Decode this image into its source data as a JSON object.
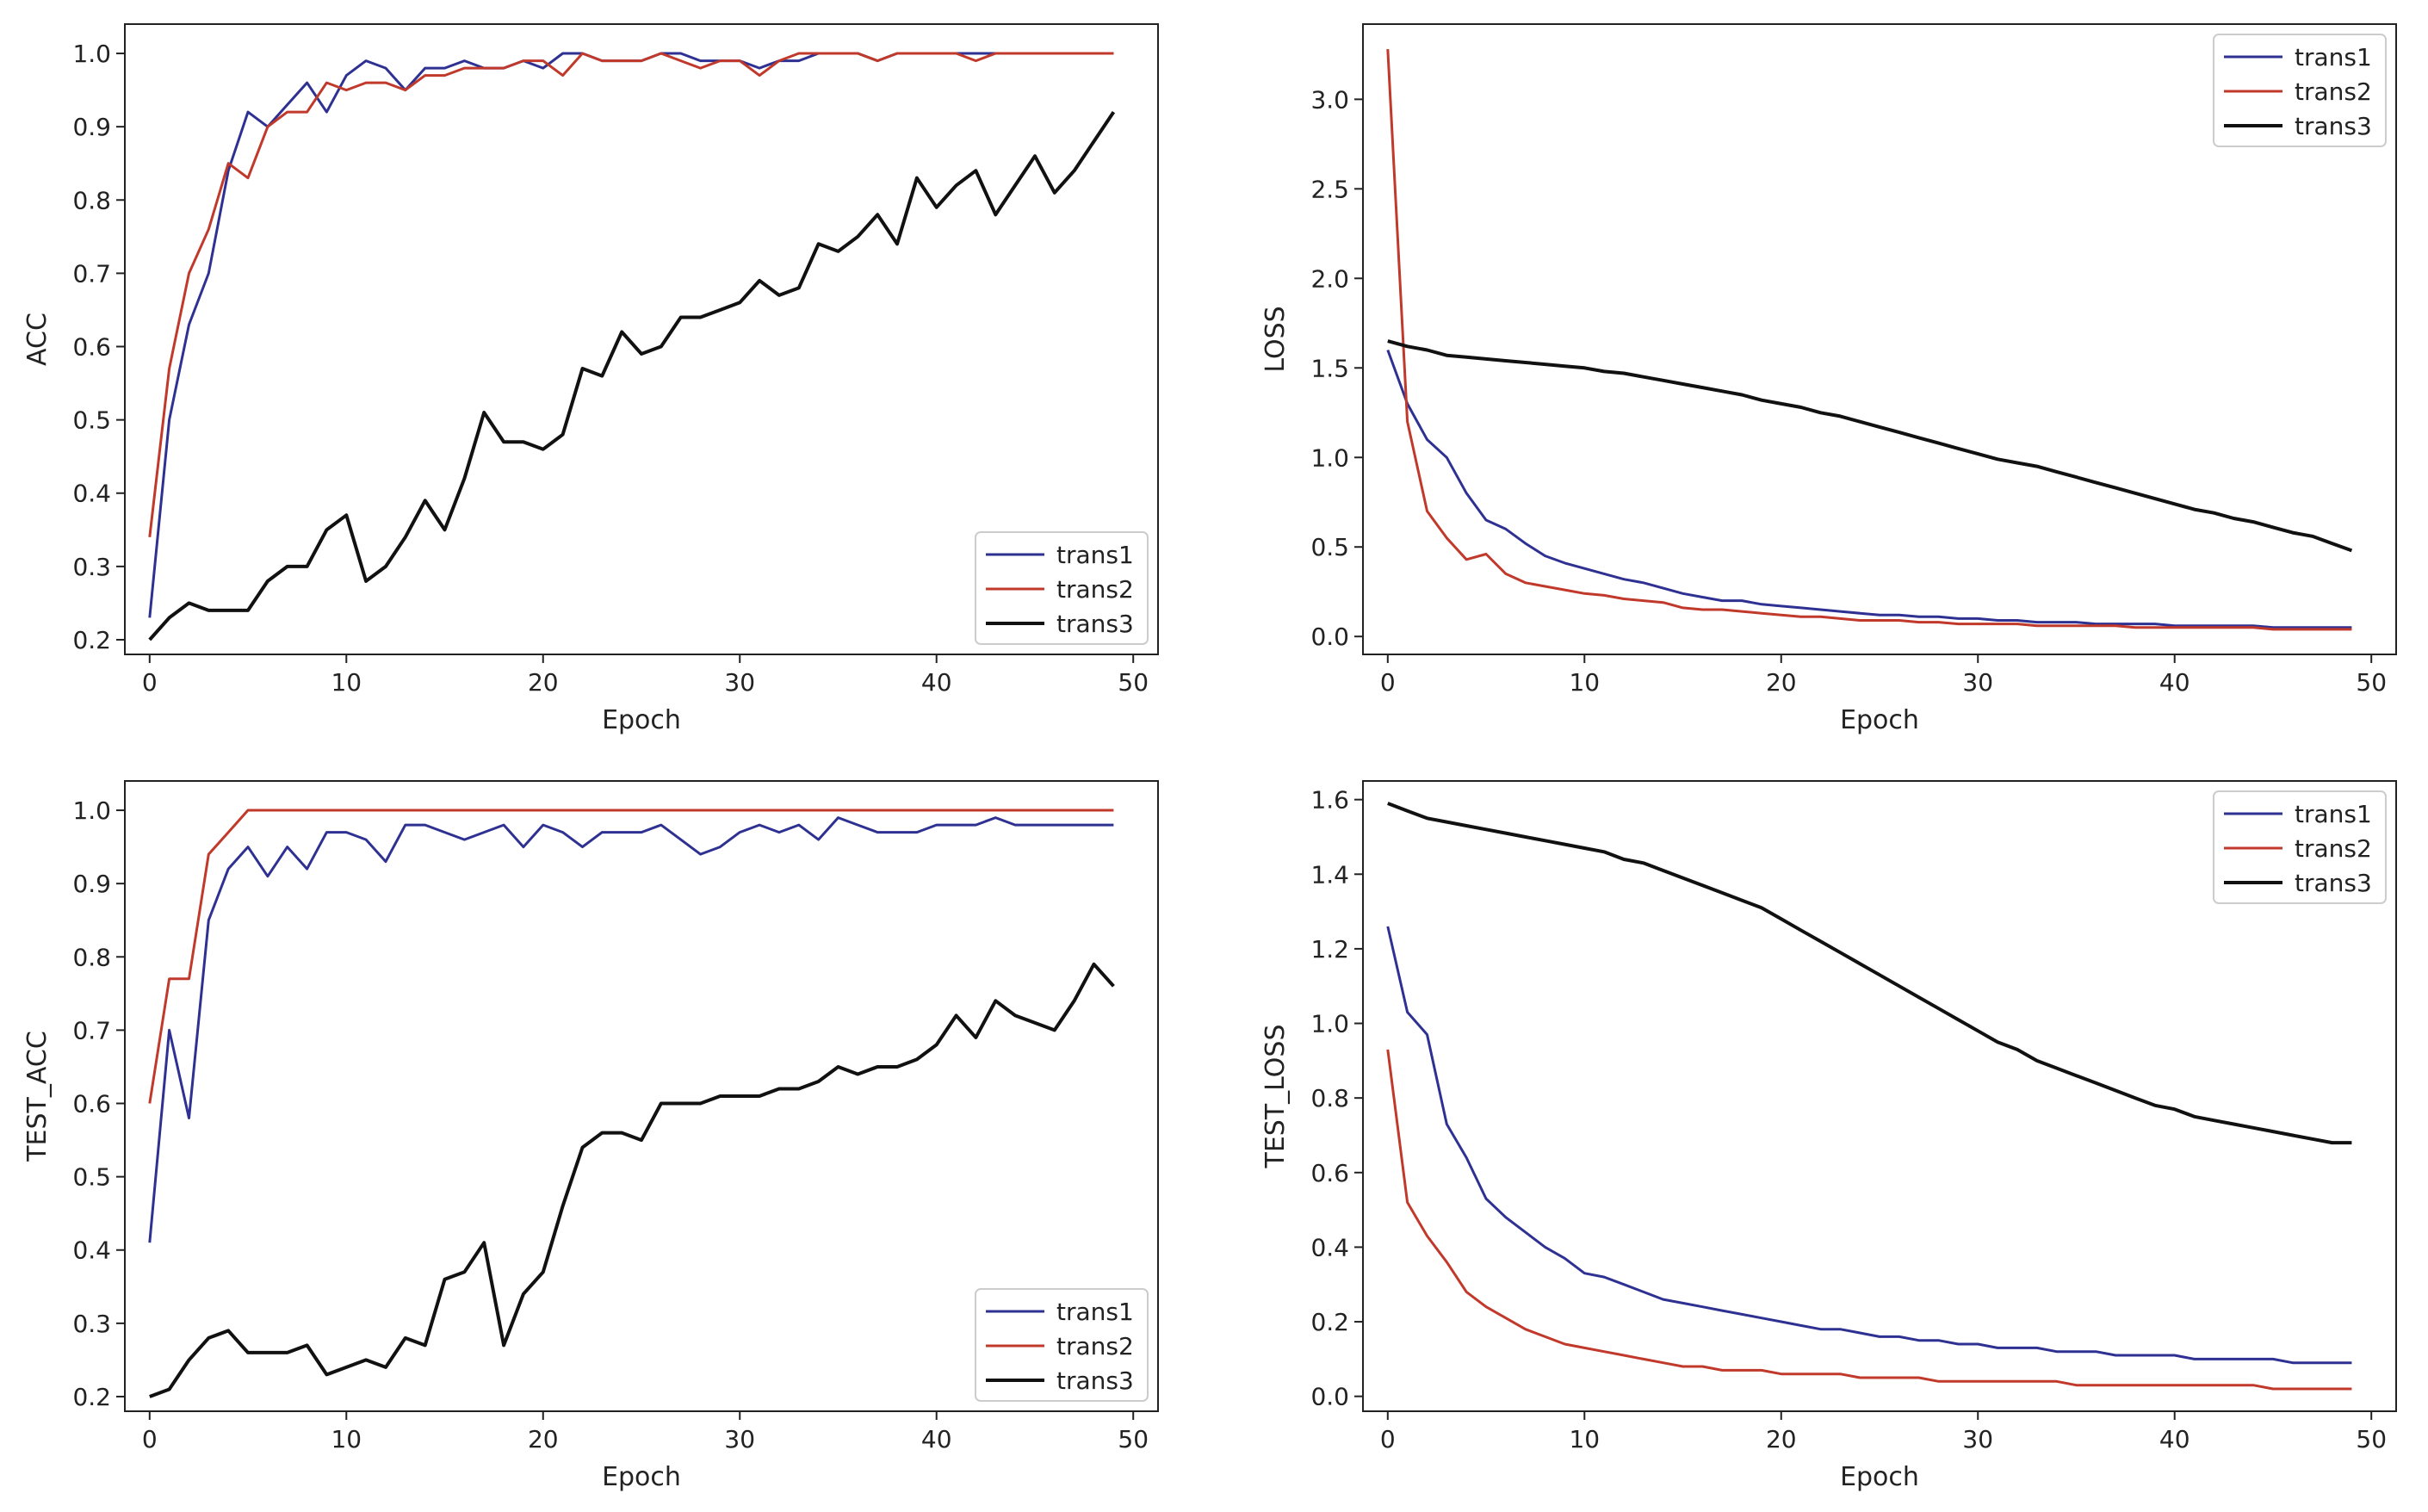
{
  "colors": {
    "trans1": "#2e3192",
    "trans2": "#c0392b",
    "trans3": "#111111"
  },
  "chart_data": [
    {
      "type": "line",
      "title": "",
      "xlabel": "Epoch",
      "ylabel": "ACC",
      "xlim": [
        0,
        50
      ],
      "ylim": [
        0.18,
        1.04
      ],
      "xticks": [
        "0",
        "10",
        "20",
        "30",
        "40",
        "50"
      ],
      "yticks": [
        "0.2",
        "0.3",
        "0.4",
        "0.5",
        "0.6",
        "0.7",
        "0.8",
        "0.9",
        "1.0"
      ],
      "legend_position": "bottom-right",
      "series": [
        {
          "name": "trans1",
          "values": [
            0.23,
            0.5,
            0.63,
            0.7,
            0.84,
            0.92,
            0.9,
            0.93,
            0.96,
            0.92,
            0.97,
            0.99,
            0.98,
            0.95,
            0.98,
            0.98,
            0.99,
            0.98,
            0.98,
            0.99,
            0.98,
            1.0,
            1.0,
            0.99,
            0.99,
            0.99,
            1.0,
            1.0,
            0.99,
            0.99,
            0.99,
            0.98,
            0.99,
            0.99,
            1.0,
            1.0,
            1.0,
            0.99,
            1.0,
            1.0,
            1.0,
            1.0,
            1.0,
            1.0,
            1.0,
            1.0,
            1.0,
            1.0,
            1.0,
            1.0
          ]
        },
        {
          "name": "trans2",
          "values": [
            0.34,
            0.57,
            0.7,
            0.76,
            0.85,
            0.83,
            0.9,
            0.92,
            0.92,
            0.96,
            0.95,
            0.96,
            0.96,
            0.95,
            0.97,
            0.97,
            0.98,
            0.98,
            0.98,
            0.99,
            0.99,
            0.97,
            1.0,
            0.99,
            0.99,
            0.99,
            1.0,
            0.99,
            0.98,
            0.99,
            0.99,
            0.97,
            0.99,
            1.0,
            1.0,
            1.0,
            1.0,
            0.99,
            1.0,
            1.0,
            1.0,
            1.0,
            0.99,
            1.0,
            1.0,
            1.0,
            1.0,
            1.0,
            1.0,
            1.0
          ]
        },
        {
          "name": "trans3",
          "values": [
            0.2,
            0.23,
            0.25,
            0.24,
            0.24,
            0.24,
            0.28,
            0.3,
            0.3,
            0.35,
            0.37,
            0.28,
            0.3,
            0.34,
            0.39,
            0.35,
            0.42,
            0.51,
            0.47,
            0.47,
            0.46,
            0.48,
            0.57,
            0.56,
            0.62,
            0.59,
            0.6,
            0.64,
            0.64,
            0.65,
            0.66,
            0.69,
            0.67,
            0.68,
            0.74,
            0.73,
            0.75,
            0.78,
            0.74,
            0.83,
            0.79,
            0.82,
            0.84,
            0.78,
            0.82,
            0.86,
            0.81,
            0.84,
            0.88,
            0.92
          ]
        }
      ]
    },
    {
      "type": "line",
      "title": "",
      "xlabel": "Epoch",
      "ylabel": "LOSS",
      "xlim": [
        0,
        50
      ],
      "ylim": [
        -0.1,
        3.42
      ],
      "xticks": [
        "0",
        "10",
        "20",
        "30",
        "40",
        "50"
      ],
      "yticks": [
        "0.0",
        "0.5",
        "1.0",
        "1.5",
        "2.0",
        "2.5",
        "3.0"
      ],
      "legend_position": "top-right",
      "series": [
        {
          "name": "trans1",
          "values": [
            1.6,
            1.3,
            1.1,
            1.0,
            0.8,
            0.65,
            0.6,
            0.52,
            0.45,
            0.41,
            0.38,
            0.35,
            0.32,
            0.3,
            0.27,
            0.24,
            0.22,
            0.2,
            0.2,
            0.18,
            0.17,
            0.16,
            0.15,
            0.14,
            0.13,
            0.12,
            0.12,
            0.11,
            0.11,
            0.1,
            0.1,
            0.09,
            0.09,
            0.08,
            0.08,
            0.08,
            0.07,
            0.07,
            0.07,
            0.07,
            0.06,
            0.06,
            0.06,
            0.06,
            0.06,
            0.05,
            0.05,
            0.05,
            0.05,
            0.05
          ]
        },
        {
          "name": "trans2",
          "values": [
            3.28,
            1.2,
            0.7,
            0.55,
            0.43,
            0.46,
            0.35,
            0.3,
            0.28,
            0.26,
            0.24,
            0.23,
            0.21,
            0.2,
            0.19,
            0.16,
            0.15,
            0.15,
            0.14,
            0.13,
            0.12,
            0.11,
            0.11,
            0.1,
            0.09,
            0.09,
            0.09,
            0.08,
            0.08,
            0.07,
            0.07,
            0.07,
            0.07,
            0.06,
            0.06,
            0.06,
            0.06,
            0.06,
            0.05,
            0.05,
            0.05,
            0.05,
            0.05,
            0.05,
            0.05,
            0.04,
            0.04,
            0.04,
            0.04,
            0.04
          ]
        },
        {
          "name": "trans3",
          "values": [
            1.65,
            1.62,
            1.6,
            1.57,
            1.56,
            1.55,
            1.54,
            1.53,
            1.52,
            1.51,
            1.5,
            1.48,
            1.47,
            1.45,
            1.43,
            1.41,
            1.39,
            1.37,
            1.35,
            1.32,
            1.3,
            1.28,
            1.25,
            1.23,
            1.2,
            1.17,
            1.14,
            1.11,
            1.08,
            1.05,
            1.02,
            0.99,
            0.97,
            0.95,
            0.92,
            0.89,
            0.86,
            0.83,
            0.8,
            0.77,
            0.74,
            0.71,
            0.69,
            0.66,
            0.64,
            0.61,
            0.58,
            0.56,
            0.52,
            0.48
          ]
        }
      ]
    },
    {
      "type": "line",
      "title": "",
      "xlabel": "Epoch",
      "ylabel": "TEST_ACC",
      "xlim": [
        0,
        50
      ],
      "ylim": [
        0.18,
        1.04
      ],
      "xticks": [
        "0",
        "10",
        "20",
        "30",
        "40",
        "50"
      ],
      "yticks": [
        "0.2",
        "0.3",
        "0.4",
        "0.5",
        "0.6",
        "0.7",
        "0.8",
        "0.9",
        "1.0"
      ],
      "legend_position": "bottom-right",
      "series": [
        {
          "name": "trans1",
          "values": [
            0.41,
            0.7,
            0.58,
            0.85,
            0.92,
            0.95,
            0.91,
            0.95,
            0.92,
            0.97,
            0.97,
            0.96,
            0.93,
            0.98,
            0.98,
            0.97,
            0.96,
            0.97,
            0.98,
            0.95,
            0.98,
            0.97,
            0.95,
            0.97,
            0.97,
            0.97,
            0.98,
            0.96,
            0.94,
            0.95,
            0.97,
            0.98,
            0.97,
            0.98,
            0.96,
            0.99,
            0.98,
            0.97,
            0.97,
            0.97,
            0.98,
            0.98,
            0.98,
            0.99,
            0.98,
            0.98,
            0.98,
            0.98,
            0.98,
            0.98
          ]
        },
        {
          "name": "trans2",
          "values": [
            0.6,
            0.77,
            0.77,
            0.94,
            0.97,
            1.0,
            1.0,
            1.0,
            1.0,
            1.0,
            1.0,
            1.0,
            1.0,
            1.0,
            1.0,
            1.0,
            1.0,
            1.0,
            1.0,
            1.0,
            1.0,
            1.0,
            1.0,
            1.0,
            1.0,
            1.0,
            1.0,
            1.0,
            1.0,
            1.0,
            1.0,
            1.0,
            1.0,
            1.0,
            1.0,
            1.0,
            1.0,
            1.0,
            1.0,
            1.0,
            1.0,
            1.0,
            1.0,
            1.0,
            1.0,
            1.0,
            1.0,
            1.0,
            1.0,
            1.0
          ]
        },
        {
          "name": "trans3",
          "values": [
            0.2,
            0.21,
            0.25,
            0.28,
            0.29,
            0.26,
            0.26,
            0.26,
            0.27,
            0.23,
            0.24,
            0.25,
            0.24,
            0.28,
            0.27,
            0.36,
            0.37,
            0.41,
            0.27,
            0.34,
            0.37,
            0.46,
            0.54,
            0.56,
            0.56,
            0.55,
            0.6,
            0.6,
            0.6,
            0.61,
            0.61,
            0.61,
            0.62,
            0.62,
            0.63,
            0.65,
            0.64,
            0.65,
            0.65,
            0.66,
            0.68,
            0.72,
            0.69,
            0.74,
            0.72,
            0.71,
            0.7,
            0.74,
            0.79,
            0.76
          ]
        }
      ]
    },
    {
      "type": "line",
      "title": "",
      "xlabel": "Epoch",
      "ylabel": "TEST_LOSS",
      "xlim": [
        0,
        50
      ],
      "ylim": [
        -0.04,
        1.65
      ],
      "xticks": [
        "0",
        "10",
        "20",
        "30",
        "40",
        "50"
      ],
      "yticks": [
        "0.0",
        "0.2",
        "0.4",
        "0.6",
        "0.8",
        "1.0",
        "1.2",
        "1.4",
        "1.6"
      ],
      "legend_position": "top-right",
      "series": [
        {
          "name": "trans1",
          "values": [
            1.26,
            1.03,
            0.97,
            0.73,
            0.64,
            0.53,
            0.48,
            0.44,
            0.4,
            0.37,
            0.33,
            0.32,
            0.3,
            0.28,
            0.26,
            0.25,
            0.24,
            0.23,
            0.22,
            0.21,
            0.2,
            0.19,
            0.18,
            0.18,
            0.17,
            0.16,
            0.16,
            0.15,
            0.15,
            0.14,
            0.14,
            0.13,
            0.13,
            0.13,
            0.12,
            0.12,
            0.12,
            0.11,
            0.11,
            0.11,
            0.11,
            0.1,
            0.1,
            0.1,
            0.1,
            0.1,
            0.09,
            0.09,
            0.09,
            0.09
          ]
        },
        {
          "name": "trans2",
          "values": [
            0.93,
            0.52,
            0.43,
            0.36,
            0.28,
            0.24,
            0.21,
            0.18,
            0.16,
            0.14,
            0.13,
            0.12,
            0.11,
            0.1,
            0.09,
            0.08,
            0.08,
            0.07,
            0.07,
            0.07,
            0.06,
            0.06,
            0.06,
            0.06,
            0.05,
            0.05,
            0.05,
            0.05,
            0.04,
            0.04,
            0.04,
            0.04,
            0.04,
            0.04,
            0.04,
            0.03,
            0.03,
            0.03,
            0.03,
            0.03,
            0.03,
            0.03,
            0.03,
            0.03,
            0.03,
            0.02,
            0.02,
            0.02,
            0.02,
            0.02
          ]
        },
        {
          "name": "trans3",
          "values": [
            1.59,
            1.57,
            1.55,
            1.54,
            1.53,
            1.52,
            1.51,
            1.5,
            1.49,
            1.48,
            1.47,
            1.46,
            1.44,
            1.43,
            1.41,
            1.39,
            1.37,
            1.35,
            1.33,
            1.31,
            1.28,
            1.25,
            1.22,
            1.19,
            1.16,
            1.13,
            1.1,
            1.07,
            1.04,
            1.01,
            0.98,
            0.95,
            0.93,
            0.9,
            0.88,
            0.86,
            0.84,
            0.82,
            0.8,
            0.78,
            0.77,
            0.75,
            0.74,
            0.73,
            0.72,
            0.71,
            0.7,
            0.69,
            0.68,
            0.68
          ]
        }
      ]
    }
  ]
}
